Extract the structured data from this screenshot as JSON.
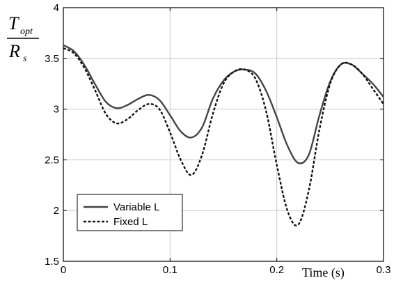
{
  "chart_data": {
    "type": "line",
    "xlabel": "Time (s)",
    "ylabel": {
      "numerator": "T",
      "numerator_sub": "opt",
      "denominator": "R",
      "denominator_sub": "s"
    },
    "xlim": [
      0,
      0.3
    ],
    "ylim": [
      1.5,
      4
    ],
    "xticks": [
      0,
      0.1,
      0.2,
      0.3
    ],
    "xtick_labels": [
      "0",
      "0.1",
      "0.2",
      "0.3"
    ],
    "yticks": [
      1.5,
      2,
      2.5,
      3,
      3.5,
      4
    ],
    "ytick_labels": [
      "1.5",
      "2",
      "2.5",
      "3",
      "3.5",
      "4"
    ],
    "grid": true,
    "legend_position": "bottom-left",
    "series": [
      {
        "name": "Variable L",
        "style": "solid",
        "color": "#444444",
        "x": [
          0,
          0.01,
          0.02,
          0.03,
          0.04,
          0.05,
          0.06,
          0.07,
          0.08,
          0.09,
          0.1,
          0.11,
          0.12,
          0.13,
          0.14,
          0.15,
          0.16,
          0.17,
          0.18,
          0.19,
          0.2,
          0.21,
          0.22,
          0.23,
          0.24,
          0.25,
          0.26,
          0.27,
          0.28,
          0.29,
          0.3
        ],
        "y": [
          3.63,
          3.57,
          3.43,
          3.24,
          3.07,
          3.01,
          3.04,
          3.1,
          3.14,
          3.09,
          2.94,
          2.78,
          2.72,
          2.82,
          3.1,
          3.28,
          3.37,
          3.39,
          3.35,
          3.18,
          2.92,
          2.64,
          2.47,
          2.55,
          2.94,
          3.27,
          3.44,
          3.44,
          3.35,
          3.25,
          3.12
        ]
      },
      {
        "name": "Fixed L",
        "style": "dashed",
        "color": "#111111",
        "x": [
          0,
          0.01,
          0.02,
          0.03,
          0.04,
          0.05,
          0.06,
          0.07,
          0.08,
          0.09,
          0.1,
          0.11,
          0.12,
          0.13,
          0.14,
          0.15,
          0.16,
          0.17,
          0.18,
          0.19,
          0.2,
          0.21,
          0.22,
          0.23,
          0.24,
          0.25,
          0.26,
          0.27,
          0.28,
          0.29,
          0.3
        ],
        "y": [
          3.6,
          3.55,
          3.4,
          3.18,
          2.95,
          2.86,
          2.9,
          2.99,
          3.05,
          3.0,
          2.77,
          2.5,
          2.35,
          2.55,
          2.95,
          3.25,
          3.37,
          3.39,
          3.3,
          2.98,
          2.45,
          2.0,
          1.86,
          2.2,
          2.8,
          3.25,
          3.44,
          3.44,
          3.35,
          3.2,
          3.05
        ]
      }
    ]
  }
}
